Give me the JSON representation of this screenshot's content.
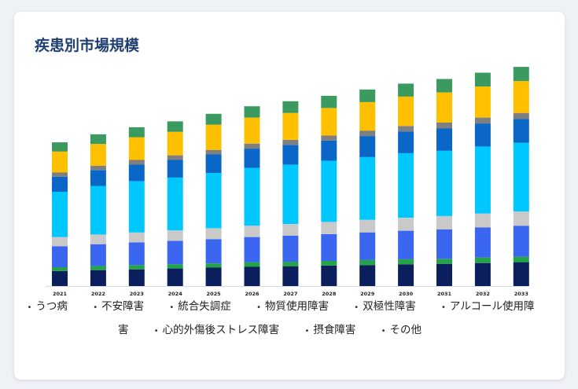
{
  "title": "疾患別市場規模",
  "chart_data": {
    "type": "bar",
    "stacked": true,
    "title": "疾患別市場規模",
    "xlabel": "",
    "ylabel": "",
    "categories": [
      "2021",
      "2022",
      "2023",
      "2024",
      "2025",
      "2026",
      "2027",
      "2028",
      "2029",
      "2030",
      "2031",
      "2032",
      "2033"
    ],
    "series": [
      {
        "name": "うつ病",
        "color": "#0a1f5c",
        "values": [
          18,
          19,
          20,
          21,
          22,
          23,
          23.5,
          24.5,
          25,
          26,
          26.5,
          27.5,
          28.5
        ]
      },
      {
        "name": "不安障害",
        "color": "#22a447",
        "values": [
          4.5,
          5,
          5,
          5,
          5,
          5.5,
          5.5,
          5.5,
          6,
          6,
          6,
          6.5,
          6.5
        ]
      },
      {
        "name": "統合失調症",
        "color": "#3a66f0",
        "values": [
          25,
          26,
          27,
          28,
          29,
          30,
          31,
          32,
          33,
          34,
          35,
          36,
          37
        ]
      },
      {
        "name": "物質使用障害",
        "color": "#c9c9c9",
        "values": [
          11,
          11.5,
          12,
          12.5,
          13,
          13.5,
          14,
          14.5,
          15,
          15.5,
          16,
          16.5,
          17
        ]
      },
      {
        "name": "双極性障害",
        "color": "#00c8ff",
        "values": [
          54,
          58,
          61,
          63,
          66,
          69,
          71,
          73,
          75,
          77,
          78,
          80,
          82
        ]
      },
      {
        "name": "アルコール使用障害",
        "color": "#0a67c7",
        "values": [
          18,
          19,
          20,
          21,
          22,
          23,
          23.5,
          24,
          25,
          26,
          26.5,
          27.5,
          28.5
        ]
      },
      {
        "name": "心的外傷後ストレス障害",
        "color": "#7f7f7f",
        "values": [
          5,
          5,
          5.5,
          5.5,
          5.5,
          6,
          6,
          6,
          6.5,
          6.5,
          7,
          7,
          7
        ]
      },
      {
        "name": "摂食障害",
        "color": "#ffc000",
        "values": [
          25,
          26,
          27,
          28,
          30,
          31,
          32,
          33,
          34,
          35,
          36,
          37,
          38
        ]
      },
      {
        "name": "その他",
        "color": "#3a9a5f",
        "values": [
          11,
          11.5,
          12,
          12.5,
          13,
          13.5,
          14,
          14.5,
          15,
          15.5,
          16,
          16.5,
          17
        ]
      }
    ],
    "ylim": [
      0,
      270
    ],
    "grid": false,
    "legend_position": "bottom"
  }
}
